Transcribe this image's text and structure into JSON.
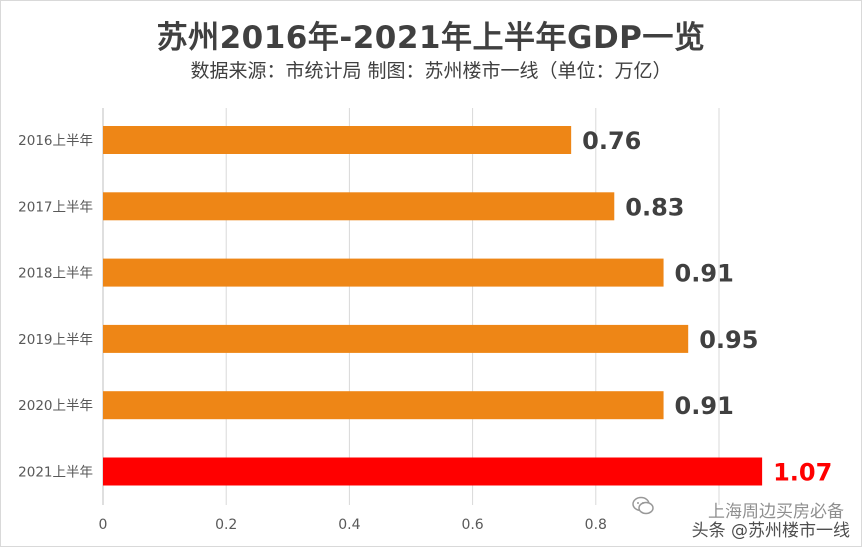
{
  "header": {
    "title": "苏州2016年-2021年上半年GDP一览",
    "subtitle": "数据来源：市统计局 制图：苏州楼市一线（单位：万亿）"
  },
  "chart_data": {
    "type": "bar",
    "orientation": "horizontal",
    "categories": [
      "2016上半年",
      "2017上半年",
      "2018上半年",
      "2019上半年",
      "2020上半年",
      "2021上半年"
    ],
    "values": [
      0.76,
      0.83,
      0.91,
      0.95,
      0.91,
      1.07
    ],
    "value_labels": [
      "0.76",
      "0.83",
      "0.91",
      "0.95",
      "0.91",
      "1.07"
    ],
    "xlim": [
      0,
      1.2
    ],
    "xticks": [
      0,
      0.2,
      0.4,
      0.6,
      0.8
    ],
    "xtick_labels": [
      "0",
      "0.2",
      "0.4",
      "0.6",
      "0.8"
    ],
    "grid": true,
    "colors": {
      "bar": "#ee8616",
      "highlight_bar": "#ff0000",
      "label": "#404040",
      "highlight_label": "#ff0000",
      "grid": "#d9d9d9"
    },
    "highlight_index": 5
  },
  "watermark": {
    "line1": "上海周边买房必备",
    "line2": "头条 @苏州楼市一线",
    "icon": "wechat-bubble-icon"
  }
}
